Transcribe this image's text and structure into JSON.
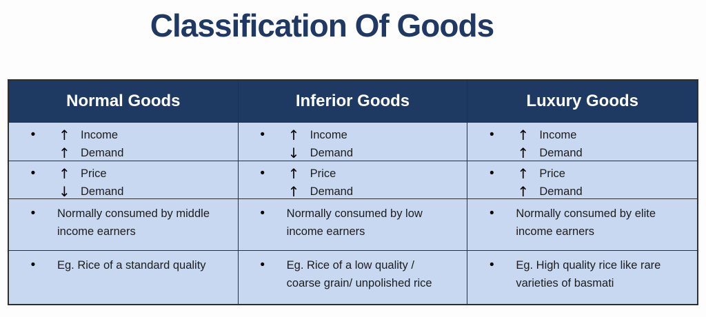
{
  "page_title": "Classification Of Goods",
  "colors": {
    "title_color": "#1F3864",
    "header_bg": "#1E3A63",
    "header_text": "#FFFFFF",
    "body_bg": "#C8D8F0",
    "border": "#2E2E2E"
  },
  "bullet_glyph": "•",
  "table": {
    "columns": [
      {
        "header": "Normal Goods",
        "rows": {
          "income": {
            "line1_arrow": "↑",
            "line1_label": "Income",
            "line2_arrow": "↑",
            "line2_label": "Demand"
          },
          "price": {
            "line1_arrow": "↑",
            "line1_label": "Price",
            "line2_arrow": "↓",
            "line2_label": "Demand"
          },
          "consumer": {
            "text": "Normally consumed by middle income earners"
          },
          "example": {
            "text": "Eg. Rice of a standard quality"
          }
        }
      },
      {
        "header": "Inferior Goods",
        "rows": {
          "income": {
            "line1_arrow": "↑",
            "line1_label": "Income",
            "line2_arrow": "↓",
            "line2_label": "Demand"
          },
          "price": {
            "line1_arrow": "↑",
            "line1_label": "Price",
            "line2_arrow": "↑",
            "line2_label": "Demand"
          },
          "consumer": {
            "text": "Normally consumed by low income earners"
          },
          "example": {
            "text": "Eg. Rice of a low quality / coarse grain/ unpolished rice"
          }
        }
      },
      {
        "header": "Luxury Goods",
        "rows": {
          "income": {
            "line1_arrow": "↑",
            "line1_label": "Income",
            "line2_arrow": "↑",
            "line2_label": "Demand"
          },
          "price": {
            "line1_arrow": "↑",
            "line1_label": "Price",
            "line2_arrow": "↑",
            "line2_label": "Demand"
          },
          "consumer": {
            "text": "Normally consumed by elite income earners"
          },
          "example": {
            "text": "Eg. High quality rice like rare varieties of basmati"
          }
        }
      }
    ]
  }
}
